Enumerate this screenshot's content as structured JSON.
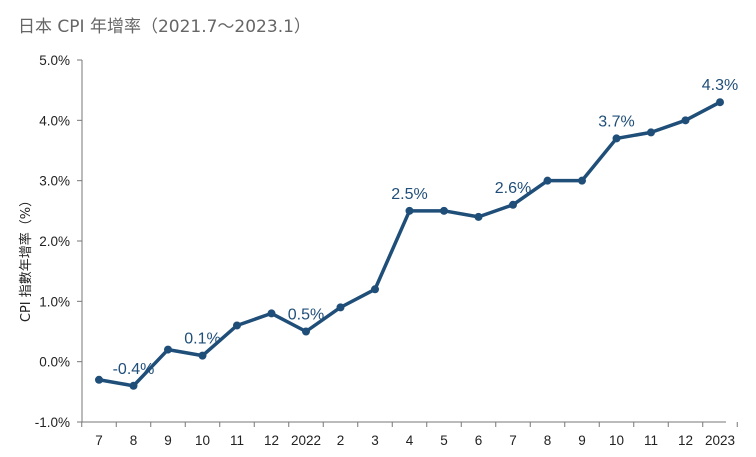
{
  "chart_data": {
    "type": "line",
    "title": "日本 CPI 年增率（2021.7～2023.1）",
    "xlabel": "",
    "ylabel": "CPI 指數年增率（%）",
    "categories": [
      "7",
      "8",
      "9",
      "10",
      "11",
      "12",
      "2022",
      "2",
      "3",
      "4",
      "5",
      "6",
      "7",
      "8",
      "9",
      "10",
      "11",
      "12",
      "2023"
    ],
    "series": [
      {
        "values": [
          -0.3,
          -0.4,
          0.2,
          0.1,
          0.6,
          0.8,
          0.5,
          0.9,
          1.2,
          2.5,
          2.5,
          2.4,
          2.6,
          3.0,
          3.0,
          3.7,
          3.8,
          4.0,
          4.3
        ]
      }
    ],
    "ylim": [
      -1.0,
      5.0
    ],
    "yticks": [
      "-1.0%",
      "0.0%",
      "1.0%",
      "2.0%",
      "3.0%",
      "4.0%",
      "5.0%"
    ],
    "annotations": [
      {
        "index": 1,
        "text": "-0.4%"
      },
      {
        "index": 3,
        "text": "0.1%"
      },
      {
        "index": 6,
        "text": "0.5%"
      },
      {
        "index": 9,
        "text": "2.5%"
      },
      {
        "index": 12,
        "text": "2.6%"
      },
      {
        "index": 15,
        "text": "3.7%"
      },
      {
        "index": 18,
        "text": "4.3%"
      }
    ],
    "grid": false,
    "legend": "none",
    "colors": {
      "line": "#1f4e79",
      "axis": "#333333",
      "label": "#1f4e79"
    }
  }
}
